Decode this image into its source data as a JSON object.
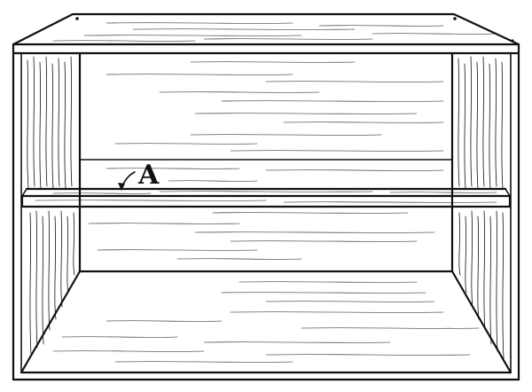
{
  "illustration": {
    "callout_label": "A"
  }
}
